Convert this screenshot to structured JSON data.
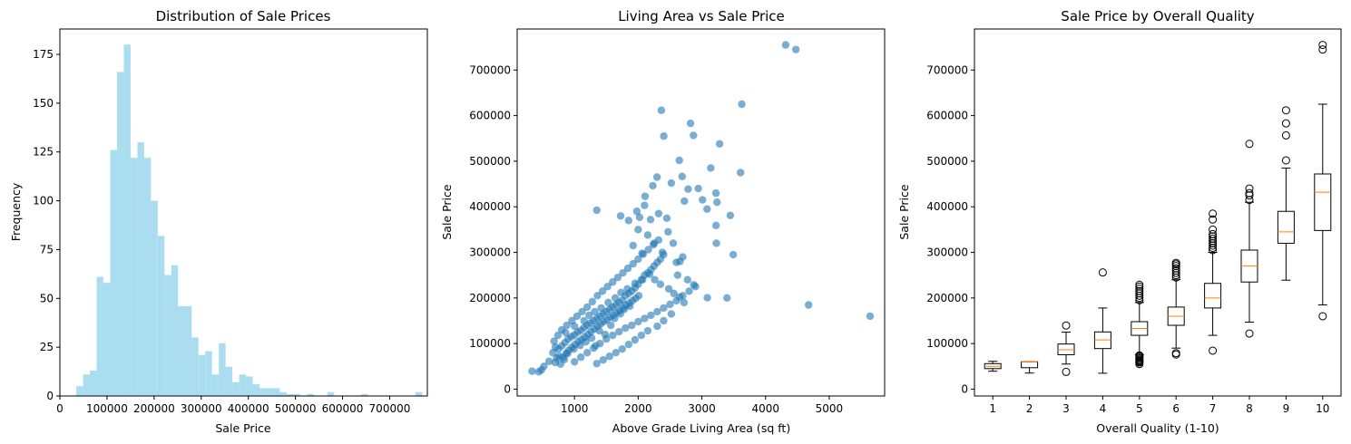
{
  "chart_data": [
    {
      "type": "histogram",
      "title": "Distribution of Sale Prices",
      "xlabel": "Sale Price",
      "ylabel": "Frequency",
      "xlim": [
        0,
        780000
      ],
      "ylim": [
        0,
        188
      ],
      "xticks": [
        0,
        100000,
        200000,
        300000,
        400000,
        500000,
        600000,
        700000
      ],
      "xtick_labels": [
        "0",
        "100000",
        "200000",
        "300000",
        "400000",
        "500000",
        "600000",
        "700000"
      ],
      "yticks": [
        0,
        25,
        50,
        75,
        100,
        125,
        150,
        175
      ],
      "ytick_labels": [
        "0",
        "25",
        "50",
        "75",
        "100",
        "125",
        "150",
        "175"
      ],
      "bin_start": 34900,
      "bin_width": 14400,
      "values": [
        5,
        11,
        13,
        61,
        58,
        126,
        166,
        180,
        122,
        130,
        122,
        100,
        82,
        62,
        67,
        46,
        46,
        30,
        21,
        23,
        11,
        27,
        15,
        7,
        11,
        10,
        6,
        4,
        4,
        4,
        2,
        1,
        1,
        0,
        1,
        0,
        0,
        2,
        0,
        0,
        0,
        0,
        1,
        0,
        0,
        0,
        0,
        0,
        0,
        0,
        2
      ],
      "color": "#87ceeb",
      "alpha": 0.7,
      "grid": false
    },
    {
      "type": "scatter",
      "title": "Living Area vs Sale Price",
      "xlabel": "Above Grade Living Area (sq ft)",
      "ylabel": "Sale Price",
      "xlim": [
        0,
        5900
      ],
      "ylim": [
        0,
        790000
      ],
      "xlim_display": [
        100,
        5870
      ],
      "xticks": [
        1000,
        2000,
        3000,
        4000,
        5000
      ],
      "xtick_labels": [
        "1000",
        "2000",
        "3000",
        "4000",
        "5000"
      ],
      "yticks": [
        0,
        100000,
        200000,
        300000,
        400000,
        500000,
        600000,
        700000
      ],
      "ytick_labels": [
        "0",
        "100000",
        "200000",
        "300000",
        "400000",
        "500000",
        "600000",
        "700000"
      ],
      "color": "#1f77b4",
      "alpha": 0.6,
      "grid": false,
      "points": [
        [
          4316,
          755000
        ],
        [
          4476,
          745000
        ],
        [
          4676,
          184750
        ],
        [
          5642,
          160000
        ],
        [
          3627,
          625000
        ],
        [
          2364,
          611657
        ],
        [
          2822,
          582933
        ],
        [
          2868,
          556581
        ],
        [
          2402,
          555000
        ],
        [
          3279,
          538000
        ],
        [
          2646,
          501837
        ],
        [
          3140,
          485000
        ],
        [
          3608,
          475000
        ],
        [
          2690,
          466500
        ],
        [
          2296,
          465000
        ],
        [
          2944,
          440000
        ],
        [
          2520,
          451950
        ],
        [
          2784,
          438780
        ],
        [
          3447,
          381000
        ],
        [
          3493,
          295000
        ],
        [
          3222,
          430000
        ],
        [
          3238,
          410000
        ],
        [
          3010,
          415298
        ],
        [
          2108,
          423000
        ],
        [
          2230,
          446261
        ],
        [
          2726,
          412500
        ],
        [
          1350,
          392500
        ],
        [
          3222,
          359100
        ],
        [
          3082,
          395000
        ],
        [
          3395,
          200000
        ],
        [
          3086,
          200500
        ],
        [
          3228,
          320000
        ],
        [
          2872,
          228950
        ],
        [
          2775,
          240000
        ],
        [
          2550,
          320000
        ],
        [
          2656,
          280000
        ],
        [
          2470,
          345000
        ],
        [
          2620,
          250000
        ],
        [
          2194,
          372000
        ],
        [
          2022,
          377000
        ],
        [
          1980,
          390000
        ],
        [
          2320,
          385000
        ],
        [
          2450,
          375000
        ],
        [
          1850,
          369900
        ],
        [
          2100,
          403000
        ],
        [
          1724,
          380000
        ],
        [
          2000,
          350000
        ],
        [
          2250,
          320000
        ],
        [
          2380,
          300000
        ],
        [
          2600,
          278000
        ],
        [
          2700,
          290000
        ],
        [
          2150,
          338000
        ],
        [
          1920,
          315000
        ],
        [
          2060,
          298000
        ],
        [
          440,
          37900
        ],
        [
          520,
          50000
        ],
        [
          600,
          61000
        ],
        [
          480,
          42000
        ],
        [
          334,
          39300
        ],
        [
          696,
          58500
        ],
        [
          720,
          68000
        ],
        [
          660,
          80000
        ],
        [
          750,
          88000
        ],
        [
          800,
          95000
        ],
        [
          850,
          102000
        ],
        [
          900,
          110000
        ],
        [
          950,
          115000
        ],
        [
          1000,
          119000
        ],
        [
          1050,
          125000
        ],
        [
          1100,
          129000
        ],
        [
          1150,
          135000
        ],
        [
          1200,
          140000
        ],
        [
          1250,
          145000
        ],
        [
          1300,
          150000
        ],
        [
          1350,
          155000
        ],
        [
          1400,
          160000
        ],
        [
          1450,
          165000
        ],
        [
          1500,
          170000
        ],
        [
          1550,
          175000
        ],
        [
          1600,
          180000
        ],
        [
          1650,
          185000
        ],
        [
          1700,
          190000
        ],
        [
          1750,
          195000
        ],
        [
          1800,
          205000
        ],
        [
          1850,
          210000
        ],
        [
          1900,
          215000
        ],
        [
          1950,
          222000
        ],
        [
          2000,
          230000
        ],
        [
          2050,
          240000
        ],
        [
          2100,
          250000
        ],
        [
          2150,
          255000
        ],
        [
          2200,
          262000
        ],
        [
          2250,
          270000
        ],
        [
          2300,
          278000
        ],
        [
          2350,
          285000
        ],
        [
          2400,
          295000
        ],
        [
          780,
          55000
        ],
        [
          820,
          70000
        ],
        [
          870,
          79000
        ],
        [
          910,
          85000
        ],
        [
          960,
          92000
        ],
        [
          1010,
          98000
        ],
        [
          1060,
          104000
        ],
        [
          1110,
          109000
        ],
        [
          1160,
          114000
        ],
        [
          1210,
          120000
        ],
        [
          1260,
          126000
        ],
        [
          1310,
          132000
        ],
        [
          1360,
          138000
        ],
        [
          1410,
          143000
        ],
        [
          1460,
          148000
        ],
        [
          1510,
          152000
        ],
        [
          1560,
          158000
        ],
        [
          1610,
          162000
        ],
        [
          1660,
          168000
        ],
        [
          1710,
          172000
        ],
        [
          1760,
          178000
        ],
        [
          1810,
          184000
        ],
        [
          1860,
          189000
        ],
        [
          1910,
          194000
        ],
        [
          1960,
          199000
        ],
        [
          2010,
          205000
        ],
        [
          800,
          130000
        ],
        [
          880,
          140000
        ],
        [
          960,
          150000
        ],
        [
          1040,
          160000
        ],
        [
          1120,
          170000
        ],
        [
          1200,
          180000
        ],
        [
          1280,
          192000
        ],
        [
          1360,
          205000
        ],
        [
          1440,
          215000
        ],
        [
          1520,
          225000
        ],
        [
          1600,
          235000
        ],
        [
          1680,
          245000
        ],
        [
          1760,
          255000
        ],
        [
          1840,
          265000
        ],
        [
          1920,
          275000
        ],
        [
          2000,
          285000
        ],
        [
          2080,
          296000
        ],
        [
          2160,
          306000
        ],
        [
          2240,
          317000
        ],
        [
          2320,
          327000
        ],
        [
          1000,
          60000
        ],
        [
          1100,
          70000
        ],
        [
          1200,
          80000
        ],
        [
          1300,
          90000
        ],
        [
          1400,
          100000
        ],
        [
          1500,
          110000
        ],
        [
          1600,
          118000
        ],
        [
          1700,
          126000
        ],
        [
          1800,
          134000
        ],
        [
          1900,
          140000
        ],
        [
          2000,
          148000
        ],
        [
          2100,
          155000
        ],
        [
          2200,
          162000
        ],
        [
          2300,
          170000
        ],
        [
          2400,
          178000
        ],
        [
          2500,
          186000
        ],
        [
          2600,
          194000
        ],
        [
          2700,
          205000
        ],
        [
          2800,
          215000
        ],
        [
          2900,
          225000
        ],
        [
          1330,
          95000
        ],
        [
          1480,
          120000
        ],
        [
          1570,
          140000
        ],
        [
          1630,
          155000
        ],
        [
          1720,
          165000
        ],
        [
          1780,
          175000
        ],
        [
          1870,
          182000
        ],
        [
          1390,
          128000
        ],
        [
          1270,
          112000
        ],
        [
          1180,
          104000
        ],
        [
          1090,
          96000
        ],
        [
          990,
          88000
        ],
        [
          890,
          78000
        ],
        [
          840,
          65000
        ],
        [
          760,
          72000
        ],
        [
          700,
          92000
        ],
        [
          680,
          105000
        ],
        [
          740,
          118000
        ],
        [
          860,
          124000
        ],
        [
          1000,
          138000
        ],
        [
          1150,
          150000
        ],
        [
          1230,
          162000
        ],
        [
          1320,
          170000
        ],
        [
          1420,
          178000
        ],
        [
          1530,
          190000
        ],
        [
          1640,
          200000
        ],
        [
          1730,
          212000
        ],
        [
          1830,
          220000
        ],
        [
          1950,
          232000
        ],
        [
          2070,
          240000
        ],
        [
          2180,
          252000
        ],
        [
          2260,
          240000
        ],
        [
          2350,
          230000
        ],
        [
          2480,
          220000
        ],
        [
          2560,
          210000
        ],
        [
          2650,
          202000
        ],
        [
          2720,
          190000
        ],
        [
          2520,
          165000
        ],
        [
          2400,
          150000
        ],
        [
          2300,
          138000
        ],
        [
          2150,
          128000
        ],
        [
          2050,
          118000
        ],
        [
          1950,
          108000
        ],
        [
          1850,
          98000
        ],
        [
          1750,
          88000
        ],
        [
          1650,
          80000
        ],
        [
          1550,
          72000
        ],
        [
          1450,
          64000
        ],
        [
          1350,
          56000
        ]
      ]
    },
    {
      "type": "boxplot",
      "title": "Sale Price by Overall Quality",
      "xlabel": "Overall Quality (1-10)",
      "ylabel": "Sale Price",
      "ylim": [
        0,
        790000
      ],
      "yticks": [
        0,
        100000,
        200000,
        300000,
        400000,
        500000,
        600000,
        700000
      ],
      "ytick_labels": [
        "0",
        "100000",
        "200000",
        "300000",
        "400000",
        "500000",
        "600000",
        "700000"
      ],
      "categories": [
        "1",
        "2",
        "3",
        "4",
        "5",
        "6",
        "7",
        "8",
        "9",
        "10"
      ],
      "median_color": "#ff7f0e",
      "grid": false,
      "boxes": [
        {
          "whislo": 39300,
          "q1": 45000,
          "med": 50150,
          "q3": 56000,
          "whishi": 61000,
          "fliers": []
        },
        {
          "whislo": 35311,
          "q1": 47000,
          "med": 60000,
          "q3": 60000,
          "whishi": 60000,
          "fliers": []
        },
        {
          "whislo": 55000,
          "q1": 75500,
          "med": 86250,
          "q3": 99000,
          "whishi": 125000,
          "fliers": [
            37900,
            139600
          ]
        },
        {
          "whislo": 34900,
          "q1": 89000,
          "med": 108000,
          "q3": 125500,
          "whishi": 178000,
          "fliers": [
            256000
          ]
        },
        {
          "whislo": 76000,
          "q1": 118000,
          "med": 133000,
          "q3": 148000,
          "whishi": 190000,
          "fliers": [
            55000,
            58500,
            60000,
            62000,
            64000,
            66500,
            69000,
            72000,
            74000,
            195000,
            200000,
            205000,
            210000,
            215000,
            220000,
            225000,
            228950
          ]
        },
        {
          "whislo": 90000,
          "q1": 140000,
          "med": 160000,
          "q3": 180000,
          "whishi": 240000,
          "fliers": [
            76000,
            79000,
            245000,
            250000,
            255000,
            260000,
            265000,
            270000,
            274000,
            277000
          ]
        },
        {
          "whislo": 118000,
          "q1": 178000,
          "med": 200000,
          "q3": 232000,
          "whishi": 300000,
          "fliers": [
            84500,
            305000,
            310000,
            315000,
            320000,
            325000,
            330000,
            335000,
            340000,
            350000,
            372000,
            385000
          ]
        },
        {
          "whislo": 147000,
          "q1": 235000,
          "med": 270000,
          "q3": 305000,
          "whishi": 410000,
          "fliers": [
            122000,
            415000,
            425000,
            430000,
            440000,
            538000
          ]
        },
        {
          "whislo": 239000,
          "q1": 320000,
          "med": 345000,
          "q3": 390000,
          "whishi": 485000,
          "fliers": [
            501837,
            556581,
            582933,
            611657
          ]
        },
        {
          "whislo": 184750,
          "q1": 348000,
          "med": 432000,
          "q3": 472000,
          "whishi": 625000,
          "fliers": [
            160000,
            745000,
            755000
          ]
        }
      ]
    }
  ]
}
